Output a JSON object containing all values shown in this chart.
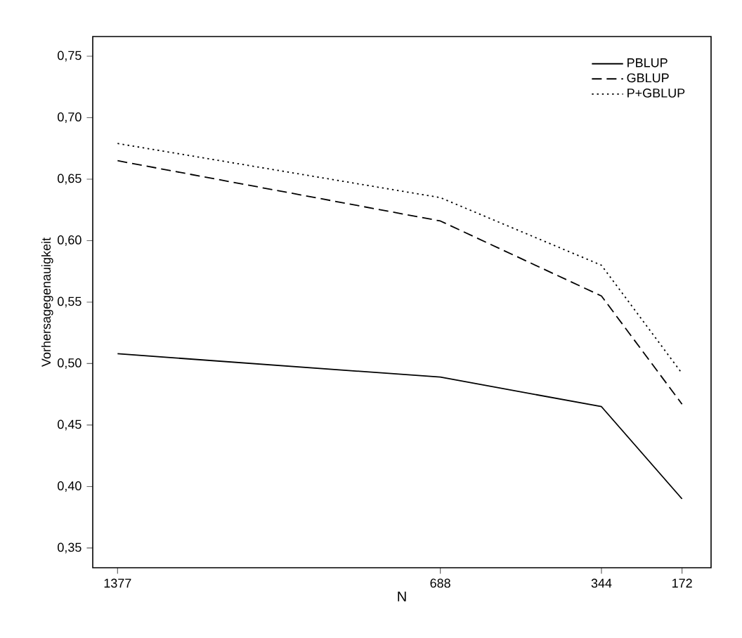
{
  "chart_data": {
    "type": "line",
    "xlabel": "N",
    "ylabel": "Vorhersagegenauigkeit",
    "x": [
      1377,
      688,
      344,
      172
    ],
    "series": [
      {
        "name": "PBLUP",
        "color": "#000000",
        "line_style": "solid",
        "values": [
          0.508,
          0.489,
          0.465,
          0.39
        ]
      },
      {
        "name": "GBLUP",
        "color": "#000000",
        "line_style": "dashed",
        "values": [
          0.665,
          0.616,
          0.555,
          0.467
        ]
      },
      {
        "name": "P+GBLUP",
        "color": "#000000",
        "line_style": "dotted",
        "values": [
          0.679,
          0.635,
          0.58,
          0.492
        ]
      }
    ],
    "xlim": [
      1430,
      110
    ],
    "ylim": [
      0.334,
      0.766
    ],
    "xticks": [
      1377,
      688,
      344,
      172
    ],
    "yticks": [
      {
        "value": 0.35,
        "label": "0,35"
      },
      {
        "value": 0.4,
        "label": "0,40"
      },
      {
        "value": 0.45,
        "label": "0,45"
      },
      {
        "value": 0.5,
        "label": "0,50"
      },
      {
        "value": 0.55,
        "label": "0,55"
      },
      {
        "value": 0.6,
        "label": "0,60"
      },
      {
        "value": 0.65,
        "label": "0,65"
      },
      {
        "value": 0.7,
        "label": "0,70"
      },
      {
        "value": 0.75,
        "label": "0,75"
      }
    ],
    "grid": false,
    "legend": "top right",
    "marker": "none"
  }
}
